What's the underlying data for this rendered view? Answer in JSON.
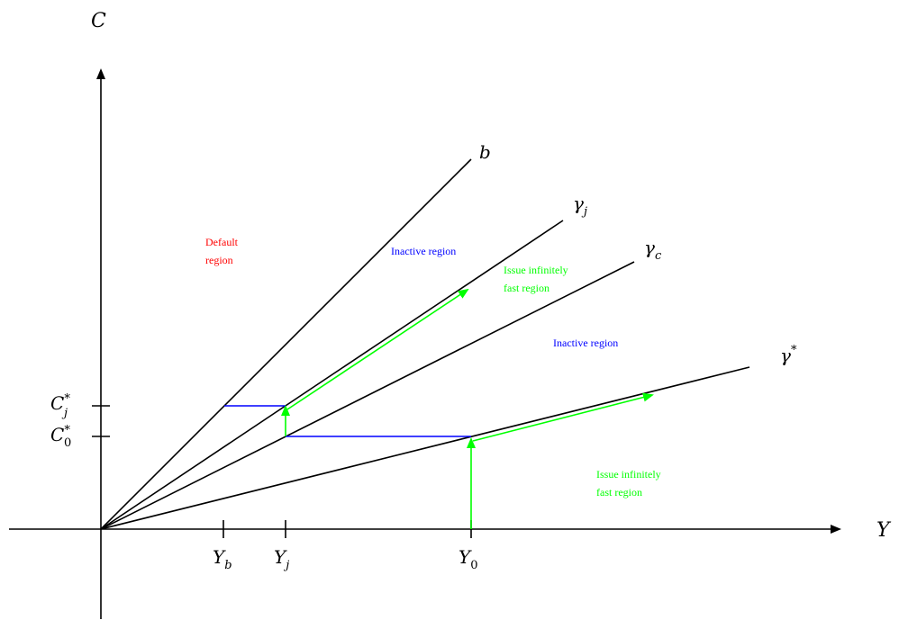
{
  "axes": {
    "y_axis_label": "C",
    "x_axis_label": "Y"
  },
  "lines": {
    "b": "b",
    "gamma_j_base": "γ",
    "gamma_j_sub": "j",
    "gamma_c_base": "γ",
    "gamma_c_sub": "c",
    "gamma_star_base": "γ",
    "gamma_star_sup": "*"
  },
  "ticks": {
    "Yb_base": "Y",
    "Yb_sub": "b",
    "Yj_base": "Y",
    "Yj_sub": "j",
    "Y0_base": "Y",
    "Y0_sub": "0",
    "Cj_base": "C",
    "Cj_sup": "*",
    "Cj_sub": "j",
    "C0_base": "C",
    "C0_sup": "*",
    "C0_sub": "0"
  },
  "regions": {
    "default_line1": "Default",
    "default_line2": "region",
    "inactive_upper": "Inactive region",
    "inactive_lower": "Inactive region",
    "issue_upper_line1": "Issue infinitely",
    "issue_upper_line2": "fast region",
    "issue_lower_line1": "Issue infinitely",
    "issue_lower_line2": "fast region"
  },
  "colors": {
    "axis": "#000000",
    "boundary_lines": "#000000",
    "blue_segments": "#0000ff",
    "green_paths": "#00ff00",
    "default_region_text": "#ff0000",
    "inactive_region_text": "#0000ff",
    "issue_region_text": "#00ff00"
  }
}
